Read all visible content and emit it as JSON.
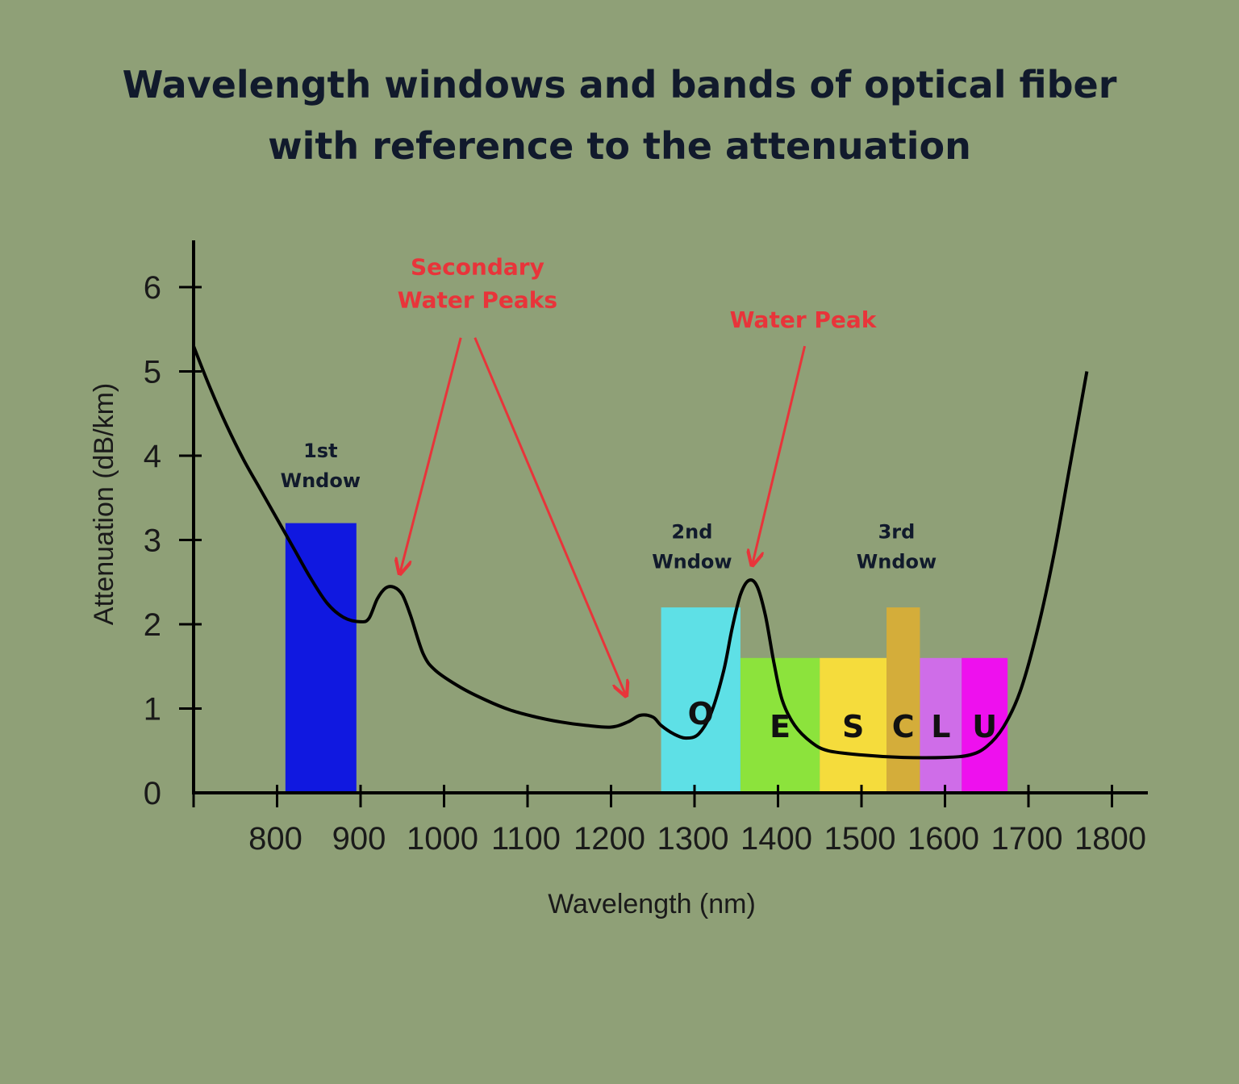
{
  "chart_data": {
    "type": "line",
    "title_lines": [
      "Wavelength windows and bands of optical fiber",
      "with reference to the attenuation"
    ],
    "xlabel": "Wavelength (nm)",
    "ylabel": "Attenuation (dB/km)",
    "xlim": [
      700,
      1850
    ],
    "ylim": [
      0,
      6.5
    ],
    "x_ticks": [
      800,
      900,
      1000,
      1100,
      1200,
      1300,
      1400,
      1500,
      1600,
      1700,
      1800
    ],
    "y_ticks": [
      0,
      1,
      2,
      3,
      4,
      5,
      6
    ],
    "grid": false,
    "line_color": "#000000",
    "series": [
      {
        "values": [
          [
            700,
            5.3
          ],
          [
            720,
            4.8
          ],
          [
            740,
            4.35
          ],
          [
            760,
            3.95
          ],
          [
            780,
            3.6
          ],
          [
            800,
            3.25
          ],
          [
            820,
            2.9
          ],
          [
            840,
            2.55
          ],
          [
            860,
            2.25
          ],
          [
            880,
            2.08
          ],
          [
            900,
            2.03
          ],
          [
            910,
            2.07
          ],
          [
            920,
            2.3
          ],
          [
            930,
            2.43
          ],
          [
            940,
            2.44
          ],
          [
            950,
            2.35
          ],
          [
            960,
            2.1
          ],
          [
            975,
            1.65
          ],
          [
            990,
            1.45
          ],
          [
            1020,
            1.25
          ],
          [
            1050,
            1.1
          ],
          [
            1080,
            0.98
          ],
          [
            1110,
            0.9
          ],
          [
            1140,
            0.84
          ],
          [
            1170,
            0.8
          ],
          [
            1200,
            0.78
          ],
          [
            1220,
            0.84
          ],
          [
            1235,
            0.92
          ],
          [
            1250,
            0.9
          ],
          [
            1260,
            0.8
          ],
          [
            1275,
            0.7
          ],
          [
            1290,
            0.65
          ],
          [
            1305,
            0.7
          ],
          [
            1320,
            0.95
          ],
          [
            1335,
            1.45
          ],
          [
            1345,
            1.95
          ],
          [
            1355,
            2.35
          ],
          [
            1365,
            2.52
          ],
          [
            1375,
            2.45
          ],
          [
            1385,
            2.1
          ],
          [
            1395,
            1.55
          ],
          [
            1405,
            1.1
          ],
          [
            1420,
            0.8
          ],
          [
            1440,
            0.6
          ],
          [
            1460,
            0.5
          ],
          [
            1500,
            0.45
          ],
          [
            1550,
            0.42
          ],
          [
            1600,
            0.42
          ],
          [
            1630,
            0.45
          ],
          [
            1650,
            0.55
          ],
          [
            1670,
            0.78
          ],
          [
            1690,
            1.2
          ],
          [
            1710,
            1.9
          ],
          [
            1730,
            2.8
          ],
          [
            1750,
            3.9
          ],
          [
            1770,
            5.0
          ]
        ]
      }
    ],
    "bands": [
      {
        "x0": 810,
        "x1": 895,
        "height": 3.2,
        "color": "#1018e0",
        "label": ""
      },
      {
        "x0": 1260,
        "x1": 1355,
        "height": 2.2,
        "color": "#5ee0e6",
        "label": "O"
      },
      {
        "x0": 1355,
        "x1": 1450,
        "height": 1.6,
        "color": "#8ce33c",
        "label": "E"
      },
      {
        "x0": 1450,
        "x1": 1530,
        "height": 1.6,
        "color": "#f5dc3c",
        "label": "S"
      },
      {
        "x0": 1530,
        "x1": 1570,
        "height": 2.2,
        "color": "#d4ad3a",
        "label": "C"
      },
      {
        "x0": 1570,
        "x1": 1620,
        "height": 1.6,
        "color": "#cf6de8",
        "label": "L"
      },
      {
        "x0": 1620,
        "x1": 1675,
        "height": 1.6,
        "color": "#ee10ee",
        "label": "U"
      }
    ],
    "window_labels": [
      {
        "lines": [
          "1st",
          "Wndow"
        ],
        "x": 852,
        "y": 3.98
      },
      {
        "lines": [
          "2nd",
          "Wndow"
        ],
        "x": 1297,
        "y": 3.02
      },
      {
        "lines": [
          "3rd",
          "Wndow"
        ],
        "x": 1542,
        "y": 3.02
      }
    ],
    "annotations": [
      {
        "text_lines": [
          "Secondary",
          "Water Peaks"
        ],
        "text_x": 1040,
        "text_y": 6.15,
        "arrows": [
          [
            1020,
            5.4,
            947,
            2.6
          ],
          [
            1037,
            5.4,
            1218,
            1.15
          ]
        ]
      },
      {
        "text_lines": [
          "Water Peak"
        ],
        "text_x": 1430,
        "text_y": 5.52,
        "arrows": [
          [
            1432,
            5.3,
            1369,
            2.7
          ]
        ]
      }
    ],
    "accent_color": "#e8343a"
  }
}
